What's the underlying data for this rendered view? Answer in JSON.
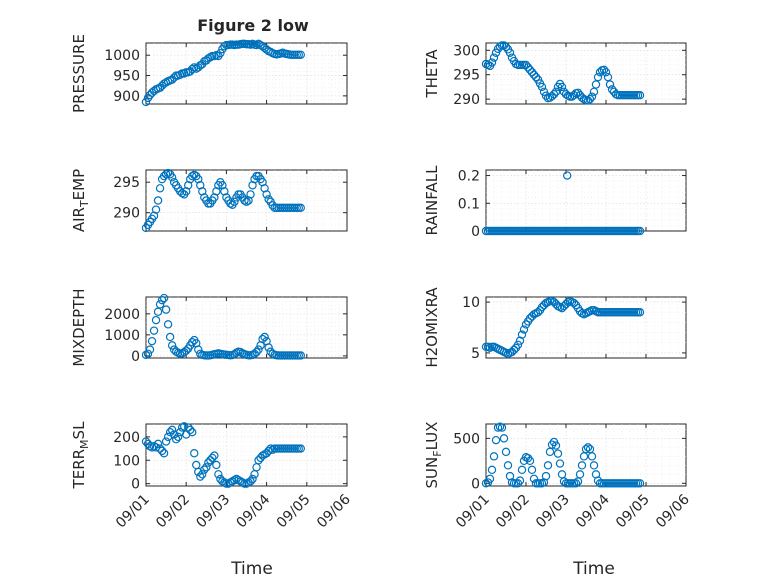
{
  "title": "Figure 2 low",
  "xlabel": "Time",
  "marker_color": "#0072BD",
  "x_ticks": [
    "09/01",
    "09/02",
    "09/03",
    "09/04",
    "09/05",
    "09/06"
  ],
  "chart_data": [
    {
      "type": "scatter",
      "ylabel": "PRESSURE",
      "ylim": [
        880,
        1030
      ],
      "yticks": [
        900,
        950,
        1000
      ],
      "xlim": [
        0,
        5
      ],
      "grid": "on",
      "x": [
        0.0,
        0.05,
        0.1,
        0.15,
        0.2,
        0.25,
        0.3,
        0.35,
        0.4,
        0.45,
        0.5,
        0.55,
        0.6,
        0.65,
        0.7,
        0.75,
        0.8,
        0.85,
        0.9,
        0.95,
        1.0,
        1.05,
        1.1,
        1.15,
        1.2,
        1.25,
        1.3,
        1.35,
        1.4,
        1.45,
        1.5,
        1.55,
        1.6,
        1.65,
        1.7,
        1.75,
        1.8,
        1.85,
        1.9,
        1.95,
        2.0,
        2.05,
        2.1,
        2.15,
        2.2,
        2.25,
        2.3,
        2.35,
        2.4,
        2.45,
        2.5,
        2.55,
        2.6,
        2.65,
        2.7,
        2.75,
        2.8,
        2.85,
        2.9,
        2.95,
        3.0,
        3.05,
        3.1,
        3.15,
        3.2,
        3.25,
        3.3,
        3.35,
        3.4,
        3.45,
        3.5,
        3.55,
        3.6,
        3.65,
        3.7,
        3.75,
        3.8,
        3.85
      ],
      "y": [
        885,
        895,
        902,
        908,
        912,
        916,
        918,
        920,
        925,
        930,
        933,
        936,
        938,
        940,
        945,
        950,
        950,
        952,
        955,
        955,
        958,
        958,
        960,
        966,
        970,
        967,
        970,
        975,
        978,
        985,
        987,
        992,
        995,
        998,
        998,
        1000,
        998,
        1005,
        1015,
        1022,
        1025,
        1025,
        1026,
        1026,
        1025,
        1026,
        1026,
        1027,
        1028,
        1028,
        1027,
        1027,
        1026,
        1028,
        1026,
        1025,
        1028,
        1025,
        1022,
        1018,
        1014,
        1010,
        1008,
        1005,
        1003,
        1002,
        1003,
        1004,
        1006,
        1004,
        1003,
        1002,
        1001,
        1001,
        1001,
        1001,
        1001,
        1001
      ]
    },
    {
      "type": "scatter",
      "ylabel": "THETA",
      "ylim": [
        289,
        301.5
      ],
      "yticks": [
        290,
        295,
        300
      ],
      "xlim": [
        0,
        5
      ],
      "grid": "on",
      "x": [
        0.0,
        0.05,
        0.1,
        0.15,
        0.2,
        0.25,
        0.3,
        0.35,
        0.4,
        0.45,
        0.5,
        0.55,
        0.6,
        0.65,
        0.7,
        0.75,
        0.8,
        0.85,
        0.9,
        0.95,
        1.0,
        1.05,
        1.1,
        1.15,
        1.2,
        1.25,
        1.3,
        1.35,
        1.4,
        1.45,
        1.5,
        1.55,
        1.6,
        1.65,
        1.7,
        1.75,
        1.8,
        1.85,
        1.9,
        1.95,
        2.0,
        2.05,
        2.1,
        2.15,
        2.2,
        2.25,
        2.3,
        2.35,
        2.4,
        2.45,
        2.5,
        2.55,
        2.6,
        2.65,
        2.7,
        2.75,
        2.8,
        2.85,
        2.9,
        2.95,
        3.0,
        3.05,
        3.1,
        3.15,
        3.2,
        3.25,
        3.3,
        3.35,
        3.4,
        3.45,
        3.5,
        3.55,
        3.6,
        3.65,
        3.7,
        3.75,
        3.8,
        3.85
      ],
      "y": [
        297.2,
        297.0,
        296.8,
        297.5,
        298.5,
        299.5,
        300.3,
        300.8,
        301.0,
        301.0,
        300.7,
        300.2,
        299.5,
        298.5,
        297.8,
        297.2,
        297.0,
        297.0,
        297.0,
        297.0,
        297.0,
        296.5,
        296.0,
        295.5,
        295.0,
        294.5,
        294.0,
        293.2,
        292.5,
        291.5,
        290.7,
        290.2,
        290.3,
        290.6,
        291.0,
        291.5,
        292.5,
        293.1,
        292.5,
        291.5,
        291.0,
        290.7,
        290.5,
        290.5,
        290.8,
        291.2,
        291.3,
        290.8,
        290.3,
        290.0,
        289.8,
        289.7,
        290.0,
        290.5,
        291.5,
        293.0,
        294.5,
        295.5,
        295.9,
        296.0,
        295.5,
        294.5,
        293.0,
        292.0,
        291.5,
        291.0,
        290.8,
        290.8,
        290.8,
        290.8,
        290.8,
        290.8,
        290.8,
        290.8,
        290.8,
        290.8,
        290.8,
        290.8
      ]
    },
    {
      "type": "scatter",
      "ylabel": "AIR_TEMP",
      "ylim": [
        287,
        297
      ],
      "yticks": [
        290,
        295
      ],
      "xlim": [
        0,
        5
      ],
      "grid": "on",
      "x": [
        0.0,
        0.05,
        0.1,
        0.15,
        0.2,
        0.25,
        0.3,
        0.35,
        0.4,
        0.45,
        0.5,
        0.55,
        0.6,
        0.65,
        0.7,
        0.75,
        0.8,
        0.85,
        0.9,
        0.95,
        1.0,
        1.05,
        1.1,
        1.15,
        1.2,
        1.25,
        1.3,
        1.35,
        1.4,
        1.45,
        1.5,
        1.55,
        1.6,
        1.65,
        1.7,
        1.75,
        1.8,
        1.85,
        1.9,
        1.95,
        2.0,
        2.05,
        2.1,
        2.15,
        2.2,
        2.25,
        2.3,
        2.35,
        2.4,
        2.45,
        2.5,
        2.55,
        2.6,
        2.65,
        2.7,
        2.75,
        2.8,
        2.85,
        2.9,
        2.95,
        3.0,
        3.05,
        3.1,
        3.15,
        3.2,
        3.25,
        3.3,
        3.35,
        3.4,
        3.45,
        3.5,
        3.55,
        3.6,
        3.65,
        3.7,
        3.75,
        3.8,
        3.85
      ],
      "y": [
        287.5,
        288.0,
        288.5,
        289.0,
        289.5,
        290.5,
        292.0,
        294.0,
        295.5,
        296.0,
        296.3,
        296.5,
        296.3,
        295.8,
        295.0,
        294.5,
        294.0,
        293.5,
        293.2,
        293.0,
        293.5,
        294.5,
        295.5,
        296.0,
        296.2,
        296.0,
        295.5,
        294.5,
        293.5,
        292.5,
        292.0,
        291.5,
        291.5,
        292.0,
        292.5,
        293.5,
        294.5,
        295.0,
        294.5,
        293.5,
        292.5,
        292.0,
        291.5,
        291.3,
        291.8,
        292.5,
        293.0,
        293.0,
        292.5,
        292.0,
        291.8,
        292.0,
        293.0,
        294.5,
        295.5,
        296.0,
        296.0,
        295.5,
        295.0,
        294.0,
        293.0,
        292.2,
        291.8,
        291.2,
        290.8,
        290.8,
        290.8,
        290.8,
        290.8,
        290.8,
        290.8,
        290.8,
        290.8,
        290.8,
        290.8,
        290.8,
        290.8,
        290.8
      ]
    },
    {
      "type": "scatter",
      "ylabel": "RAINFALL",
      "ylim": [
        0,
        0.22
      ],
      "yticks": [
        0,
        0.1,
        0.2
      ],
      "xlim": [
        0,
        5
      ],
      "grid": "on",
      "x": [
        0.0,
        0.05,
        0.1,
        0.15,
        0.2,
        0.25,
        0.3,
        0.35,
        0.4,
        0.45,
        0.5,
        0.55,
        0.6,
        0.65,
        0.7,
        0.75,
        0.8,
        0.85,
        0.9,
        0.95,
        1.0,
        1.05,
        1.1,
        1.15,
        1.2,
        1.25,
        1.3,
        1.35,
        1.4,
        1.45,
        1.5,
        1.55,
        1.6,
        1.65,
        1.7,
        1.75,
        1.8,
        1.85,
        1.9,
        1.95,
        2.0,
        2.05,
        2.1,
        2.15,
        2.2,
        2.25,
        2.3,
        2.35,
        2.4,
        2.45,
        2.5,
        2.55,
        2.6,
        2.65,
        2.7,
        2.75,
        2.8,
        2.85,
        2.9,
        2.95,
        3.0,
        3.05,
        3.1,
        3.15,
        3.2,
        3.25,
        3.3,
        3.35,
        3.4,
        3.45,
        3.5,
        3.55,
        3.6,
        3.65,
        3.7,
        3.75,
        3.8,
        3.85,
        2.03
      ],
      "y": [
        0,
        0,
        0,
        0,
        0,
        0,
        0,
        0,
        0,
        0,
        0,
        0,
        0,
        0,
        0,
        0,
        0,
        0,
        0,
        0,
        0,
        0,
        0,
        0,
        0,
        0,
        0,
        0,
        0,
        0,
        0,
        0,
        0,
        0,
        0,
        0,
        0,
        0,
        0,
        0,
        0,
        0,
        0,
        0,
        0,
        0,
        0,
        0,
        0,
        0,
        0,
        0,
        0,
        0,
        0,
        0,
        0,
        0,
        0,
        0,
        0,
        0,
        0,
        0,
        0,
        0,
        0,
        0,
        0,
        0,
        0,
        0,
        0,
        0,
        0,
        0,
        0,
        0,
        0.2
      ]
    },
    {
      "type": "scatter",
      "ylabel": "MIXDEPTH",
      "ylim": [
        -100,
        2800
      ],
      "yticks": [
        0,
        1000,
        2000
      ],
      "xlim": [
        0,
        5
      ],
      "grid": "on",
      "x": [
        0.0,
        0.05,
        0.1,
        0.15,
        0.2,
        0.25,
        0.3,
        0.35,
        0.4,
        0.45,
        0.5,
        0.55,
        0.6,
        0.65,
        0.7,
        0.75,
        0.8,
        0.85,
        0.9,
        0.95,
        1.0,
        1.05,
        1.1,
        1.15,
        1.2,
        1.25,
        1.3,
        1.35,
        1.4,
        1.45,
        1.5,
        1.55,
        1.6,
        1.65,
        1.7,
        1.75,
        1.8,
        1.85,
        1.9,
        1.95,
        2.0,
        2.05,
        2.1,
        2.15,
        2.2,
        2.25,
        2.3,
        2.35,
        2.4,
        2.45,
        2.5,
        2.55,
        2.6,
        2.65,
        2.7,
        2.75,
        2.8,
        2.85,
        2.9,
        2.95,
        3.0,
        3.05,
        3.1,
        3.15,
        3.2,
        3.25,
        3.3,
        3.35,
        3.4,
        3.45,
        3.5,
        3.55,
        3.6,
        3.65,
        3.7,
        3.75,
        3.8,
        3.85
      ],
      "y": [
        50,
        100,
        300,
        700,
        1200,
        1700,
        2100,
        2450,
        2650,
        2750,
        2200,
        1500,
        900,
        500,
        300,
        200,
        150,
        100,
        120,
        180,
        250,
        350,
        500,
        650,
        750,
        600,
        300,
        100,
        50,
        30,
        20,
        20,
        30,
        50,
        80,
        100,
        120,
        100,
        80,
        60,
        50,
        40,
        30,
        40,
        80,
        150,
        200,
        180,
        120,
        80,
        50,
        30,
        30,
        50,
        100,
        180,
        300,
        500,
        800,
        900,
        700,
        400,
        200,
        100,
        50,
        30,
        20,
        20,
        20,
        20,
        20,
        20,
        20,
        20,
        20,
        20,
        20,
        20
      ]
    },
    {
      "type": "scatter",
      "ylabel": "H2OMIXRA",
      "ylim": [
        4.5,
        10.5
      ],
      "yticks": [
        5,
        10
      ],
      "xlim": [
        0,
        5
      ],
      "grid": "on",
      "x": [
        0.0,
        0.05,
        0.1,
        0.15,
        0.2,
        0.25,
        0.3,
        0.35,
        0.4,
        0.45,
        0.5,
        0.55,
        0.6,
        0.65,
        0.7,
        0.75,
        0.8,
        0.85,
        0.9,
        0.95,
        1.0,
        1.05,
        1.1,
        1.15,
        1.2,
        1.25,
        1.3,
        1.35,
        1.4,
        1.45,
        1.5,
        1.55,
        1.6,
        1.65,
        1.7,
        1.75,
        1.8,
        1.85,
        1.9,
        1.95,
        2.0,
        2.05,
        2.1,
        2.15,
        2.2,
        2.25,
        2.3,
        2.35,
        2.4,
        2.45,
        2.5,
        2.55,
        2.6,
        2.65,
        2.7,
        2.75,
        2.8,
        2.85,
        2.9,
        2.95,
        3.0,
        3.05,
        3.1,
        3.15,
        3.2,
        3.25,
        3.3,
        3.35,
        3.4,
        3.45,
        3.5,
        3.55,
        3.6,
        3.65,
        3.7,
        3.75,
        3.8,
        3.85
      ],
      "y": [
        5.6,
        5.6,
        5.5,
        5.6,
        5.6,
        5.5,
        5.4,
        5.3,
        5.2,
        5.1,
        5.0,
        4.9,
        5.0,
        5.1,
        5.3,
        5.5,
        5.8,
        6.2,
        6.8,
        7.3,
        7.8,
        8.1,
        8.4,
        8.6,
        8.8,
        8.9,
        9.0,
        9.2,
        9.5,
        9.7,
        9.9,
        10.0,
        10.1,
        10.1,
        10.0,
        9.8,
        9.6,
        9.5,
        9.4,
        9.6,
        9.8,
        10.0,
        10.1,
        10.0,
        9.9,
        9.7,
        9.4,
        9.1,
        8.9,
        8.8,
        8.9,
        9.0,
        9.1,
        9.2,
        9.2,
        9.1,
        9.0,
        9.0,
        9.0,
        9.0,
        9.0,
        9.0,
        9.0,
        9.0,
        9.0,
        9.0,
        9.0,
        9.0,
        9.0,
        9.0,
        9.0,
        9.0,
        9.0,
        9.0,
        9.0,
        9.0,
        9.0,
        9.0
      ]
    },
    {
      "type": "scatter",
      "ylabel": "TERR_MSL",
      "ylim": [
        -10,
        255
      ],
      "yticks": [
        0,
        100,
        200
      ],
      "xlim": [
        0,
        5
      ],
      "grid": "on",
      "x": [
        0.0,
        0.05,
        0.1,
        0.15,
        0.2,
        0.25,
        0.3,
        0.35,
        0.4,
        0.45,
        0.5,
        0.55,
        0.6,
        0.65,
        0.7,
        0.75,
        0.8,
        0.85,
        0.9,
        0.95,
        1.0,
        1.05,
        1.1,
        1.15,
        1.2,
        1.25,
        1.3,
        1.35,
        1.4,
        1.45,
        1.5,
        1.55,
        1.6,
        1.65,
        1.7,
        1.75,
        1.8,
        1.85,
        1.9,
        1.95,
        2.0,
        2.05,
        2.1,
        2.15,
        2.2,
        2.25,
        2.3,
        2.35,
        2.4,
        2.45,
        2.5,
        2.55,
        2.6,
        2.65,
        2.7,
        2.75,
        2.8,
        2.85,
        2.9,
        2.95,
        3.0,
        3.05,
        3.1,
        3.15,
        3.2,
        3.25,
        3.3,
        3.35,
        3.4,
        3.45,
        3.5,
        3.55,
        3.6,
        3.65,
        3.7,
        3.75,
        3.8,
        3.85
      ],
      "y": [
        180,
        170,
        160,
        155,
        160,
        155,
        170,
        150,
        140,
        130,
        180,
        200,
        220,
        230,
        210,
        190,
        200,
        220,
        240,
        245,
        210,
        240,
        230,
        220,
        130,
        80,
        50,
        30,
        40,
        60,
        70,
        90,
        100,
        110,
        120,
        80,
        40,
        20,
        10,
        5,
        0,
        0,
        5,
        10,
        15,
        20,
        15,
        10,
        5,
        0,
        0,
        5,
        10,
        20,
        40,
        70,
        100,
        110,
        120,
        125,
        130,
        140,
        150,
        145,
        150,
        150,
        150,
        150,
        150,
        150,
        150,
        150,
        150,
        150,
        150,
        150,
        150,
        150
      ]
    },
    {
      "type": "scatter",
      "ylabel": "SUN_FLUX",
      "ylim": [
        -30,
        660
      ],
      "yticks": [
        0,
        500
      ],
      "xlim": [
        0,
        5
      ],
      "grid": "on",
      "x": [
        0.0,
        0.05,
        0.1,
        0.15,
        0.2,
        0.25,
        0.3,
        0.35,
        0.4,
        0.45,
        0.5,
        0.55,
        0.6,
        0.65,
        0.7,
        0.75,
        0.8,
        0.85,
        0.9,
        0.95,
        1.0,
        1.05,
        1.1,
        1.15,
        1.2,
        1.25,
        1.3,
        1.35,
        1.4,
        1.45,
        1.5,
        1.55,
        1.6,
        1.65,
        1.7,
        1.75,
        1.8,
        1.85,
        1.9,
        1.95,
        2.0,
        2.05,
        2.1,
        2.15,
        2.2,
        2.25,
        2.3,
        2.35,
        2.4,
        2.45,
        2.5,
        2.55,
        2.6,
        2.65,
        2.7,
        2.75,
        2.8,
        2.85,
        2.9,
        2.95,
        3.0,
        3.05,
        3.1,
        3.15,
        3.2,
        3.25,
        3.3,
        3.35,
        3.4,
        3.45,
        3.5,
        3.55,
        3.6,
        3.65,
        3.7,
        3.75,
        3.8,
        3.85
      ],
      "y": [
        0,
        10,
        50,
        150,
        300,
        480,
        620,
        630,
        620,
        500,
        350,
        200,
        80,
        10,
        0,
        0,
        0,
        30,
        150,
        250,
        290,
        280,
        250,
        150,
        50,
        0,
        0,
        0,
        0,
        10,
        80,
        200,
        350,
        430,
        460,
        420,
        330,
        220,
        100,
        20,
        0,
        0,
        0,
        0,
        0,
        0,
        20,
        100,
        200,
        300,
        380,
        400,
        380,
        300,
        200,
        100,
        30,
        0,
        0,
        0,
        0,
        0,
        0,
        0,
        0,
        0,
        0,
        0,
        0,
        0,
        0,
        0,
        0,
        0,
        0,
        0,
        0,
        0
      ]
    }
  ]
}
